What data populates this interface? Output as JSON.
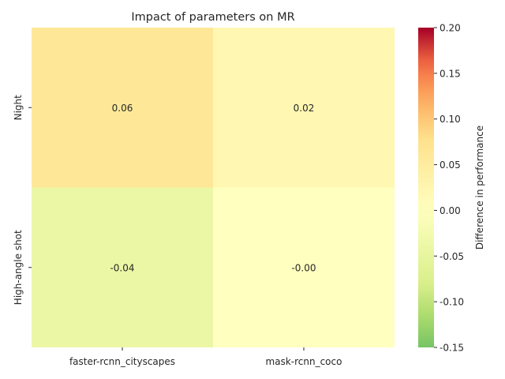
{
  "chart_data": {
    "type": "heatmap",
    "title": "Impact of parameters on MR",
    "columns": [
      "faster-rcnn_cityscapes",
      "mask-rcnn_coco"
    ],
    "rows": [
      "Night",
      "High-angle shot"
    ],
    "values": [
      [
        0.06,
        0.02
      ],
      [
        -0.04,
        -0.0
      ]
    ],
    "cell_labels": [
      [
        "0.06",
        "0.02"
      ],
      [
        "-0.04",
        "-0.00"
      ]
    ],
    "colorbar": {
      "label": "Difference in performance",
      "range": [
        -0.15,
        0.2
      ],
      "center": 0.0,
      "colormap": "RdYlGn_r",
      "ticks": [
        -0.15,
        -0.1,
        -0.05,
        0.0,
        0.05,
        0.1,
        0.15,
        0.2
      ],
      "tick_labels": [
        "-0.15",
        "-0.10",
        "-0.05",
        "0.00",
        "0.05",
        "0.10",
        "0.15",
        "0.20"
      ]
    }
  }
}
